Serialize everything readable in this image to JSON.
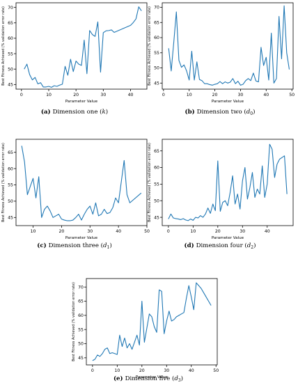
{
  "figure": {
    "background": "#ffffff",
    "line_color": "#1f77b4"
  },
  "chart_data": [
    {
      "type": "line",
      "caption": {
        "label": "(a)",
        "text": "Dimension one (k)"
      },
      "xlabel": "Parameter Value",
      "ylabel": "Best Fitness Achieved (% validation error rate)",
      "xlim": [
        -2,
        46
      ],
      "ylim": [
        43.5,
        71.5
      ],
      "xticks": [
        0,
        10,
        20,
        30,
        40
      ],
      "yticks": [
        45,
        50,
        55,
        60,
        65,
        70
      ],
      "grid": false,
      "series": [
        {
          "x": [
            1,
            2,
            3,
            4,
            5,
            6,
            7,
            8,
            9,
            10,
            11,
            12,
            13,
            14,
            15,
            16,
            17,
            18,
            19,
            20,
            21,
            22,
            23,
            24,
            25,
            26,
            27,
            28,
            29,
            30,
            31,
            32,
            33,
            34,
            40,
            41,
            42,
            43,
            44
          ],
          "y": [
            50.0,
            51.6,
            48.2,
            46.5,
            47.3,
            45.2,
            45.6,
            44.2,
            44.2,
            44.4,
            44.1,
            44.6,
            44.4,
            44.8,
            45.1,
            50.9,
            48.0,
            53.2,
            49.2,
            52.6,
            51.6,
            51.2,
            59.4,
            48.5,
            62.5,
            61.2,
            60.6,
            65.3,
            49.0,
            61.8,
            62.4,
            62.5,
            62.7,
            61.9,
            64.2,
            65.1,
            66.3,
            70.2,
            68.9
          ]
        }
      ]
    },
    {
      "type": "line",
      "caption": {
        "label": "(b)",
        "text": "Dimension two (d0)"
      },
      "xlabel": "Parameter Value",
      "ylabel": "Best Fitness Achieved (% validation error rate)",
      "xlim": [
        -0.5,
        50.5
      ],
      "ylim": [
        43.0,
        71.5
      ],
      "xticks": [
        0,
        10,
        20,
        30,
        40,
        50
      ],
      "yticks": [
        45,
        50,
        55,
        60,
        65,
        70
      ],
      "grid": false,
      "series": [
        {
          "x": [
            2,
            3,
            4,
            5,
            6,
            7,
            8,
            9,
            10,
            11,
            12,
            13,
            14,
            15,
            16,
            17,
            18,
            19,
            20,
            21,
            22,
            23,
            24,
            25,
            26,
            27,
            28,
            29,
            30,
            31,
            32,
            33,
            34,
            35,
            36,
            37,
            38,
            39,
            40,
            41,
            42,
            43,
            44,
            45,
            46,
            47,
            48,
            49
          ],
          "y": [
            56.5,
            49.0,
            58.5,
            68.5,
            52.5,
            50.2,
            51.0,
            49.0,
            46.0,
            55.5,
            46.0,
            52.0,
            46.2,
            45.8,
            44.8,
            44.8,
            44.5,
            44.3,
            44.6,
            44.8,
            45.5,
            44.8,
            45.4,
            45.0,
            45.3,
            46.5,
            44.8,
            45.6,
            44.3,
            44.6,
            45.8,
            46.5,
            45.8,
            48.3,
            45.7,
            45.4,
            56.8,
            50.8,
            53.5,
            46.0,
            61.5,
            45.0,
            46.5,
            67.0,
            53.0,
            70.5,
            55.0,
            49.5
          ]
        }
      ]
    },
    {
      "type": "line",
      "caption": {
        "label": "(c)",
        "text": "Dimension three (d1)"
      },
      "xlabel": "Parameter Value",
      "ylabel": "Best Fitness Achieved (% validation error rate)",
      "xlim": [
        4,
        50
      ],
      "ylim": [
        42.5,
        69.0
      ],
      "xticks": [
        10,
        20,
        30,
        40,
        50
      ],
      "yticks": [
        45,
        50,
        55,
        60,
        65
      ],
      "grid": false,
      "series": [
        {
          "x": [
            6,
            7,
            8,
            9,
            10,
            11,
            12,
            13,
            14,
            15,
            16,
            17,
            18,
            19,
            20,
            21,
            22,
            23,
            24,
            25,
            26,
            27,
            28,
            29,
            30,
            31,
            32,
            33,
            34,
            35,
            36,
            37,
            38,
            39,
            40,
            41,
            42,
            43,
            44,
            48
          ],
          "y": [
            67.0,
            62.0,
            52.0,
            54.5,
            57.0,
            51.0,
            57.5,
            45.0,
            47.5,
            48.5,
            47.0,
            45.0,
            45.5,
            46.0,
            44.5,
            44.2,
            44.0,
            44.0,
            44.2,
            45.0,
            46.0,
            44.2,
            46.0,
            47.5,
            48.5,
            46.0,
            49.5,
            45.5,
            46.0,
            47.5,
            46.2,
            46.5,
            48.0,
            51.0,
            49.5,
            56.0,
            62.5,
            52.0,
            49.5,
            52.5
          ]
        }
      ]
    },
    {
      "type": "line",
      "caption": {
        "label": "(d)",
        "text": "Dimension four (d2)"
      },
      "xlabel": "Parameter Value",
      "ylabel": "Best Fitness Achieved (% validation error rate)",
      "xlim": [
        -2.5,
        50.5
      ],
      "ylim": [
        42.5,
        68.5
      ],
      "xticks": [
        0,
        10,
        20,
        30,
        40
      ],
      "yticks": [
        45,
        50,
        55,
        60,
        65
      ],
      "grid": false,
      "series": [
        {
          "x": [
            0,
            1,
            2,
            3,
            4,
            5,
            6,
            7,
            8,
            9,
            10,
            11,
            12,
            13,
            14,
            15,
            16,
            17,
            18,
            19,
            20,
            21,
            22,
            23,
            24,
            25,
            26,
            27,
            28,
            29,
            30,
            31,
            32,
            33,
            34,
            35,
            36,
            37,
            38,
            39,
            40,
            41,
            42,
            43,
            44,
            45,
            46,
            47,
            48
          ],
          "y": [
            44.5,
            46.0,
            44.8,
            44.6,
            44.5,
            44.3,
            44.6,
            44.2,
            44.0,
            44.5,
            44.1,
            45.0,
            44.8,
            45.5,
            45.0,
            46.0,
            47.8,
            46.2,
            49.0,
            47.0,
            62.0,
            46.8,
            49.5,
            50.0,
            48.5,
            52.5,
            57.5,
            49.0,
            52.0,
            47.5,
            56.0,
            60.0,
            50.5,
            54.0,
            58.5,
            51.0,
            53.5,
            52.0,
            60.5,
            51.0,
            55.0,
            67.0,
            65.5,
            57.0,
            61.0,
            62.5,
            63.0,
            63.5,
            52.0
          ]
        }
      ]
    },
    {
      "type": "line",
      "caption": {
        "label": "(e)",
        "text": "Dimension five (d3)"
      },
      "xlabel": "Parameter Value",
      "ylabel": "Best Fitness Achieved (% validation error rate)",
      "xlim": [
        -2.5,
        50.5
      ],
      "ylim": [
        42.5,
        73.0
      ],
      "xticks": [
        0,
        10,
        20,
        30,
        40,
        50
      ],
      "yticks": [
        45,
        50,
        55,
        60,
        65,
        70
      ],
      "grid": false,
      "series": [
        {
          "x": [
            0,
            1,
            2,
            3,
            4,
            5,
            6,
            7,
            8,
            9,
            10,
            11,
            12,
            13,
            14,
            15,
            16,
            17,
            18,
            19,
            20,
            21,
            22,
            23,
            24,
            25,
            26,
            27,
            28,
            29,
            30,
            31,
            32,
            33,
            34,
            35,
            36,
            37,
            38,
            39,
            40,
            41,
            42,
            43,
            44,
            45,
            46,
            47,
            48
          ],
          "y": [
            44.0,
            44.5,
            46.0,
            45.5,
            46.5,
            48.0,
            48.5,
            46.5,
            46.8,
            46.5,
            46.2,
            53.0,
            49.0,
            52.0,
            48.5,
            50.0,
            48.0,
            50.5,
            53.0,
            49.5,
            65.0,
            50.5,
            55.5,
            60.5,
            59.5,
            56.0,
            54.0,
            69.0,
            68.5,
            53.5,
            58.0,
            61.5,
            58.0,
            58.5,
            59.5,
            60.0,
            60.5,
            61.0,
            66.0,
            70.5,
            66.5,
            62.0,
            71.5,
            70.5,
            69.5,
            68.0,
            66.5,
            65.0,
            63.5
          ]
        }
      ]
    }
  ]
}
